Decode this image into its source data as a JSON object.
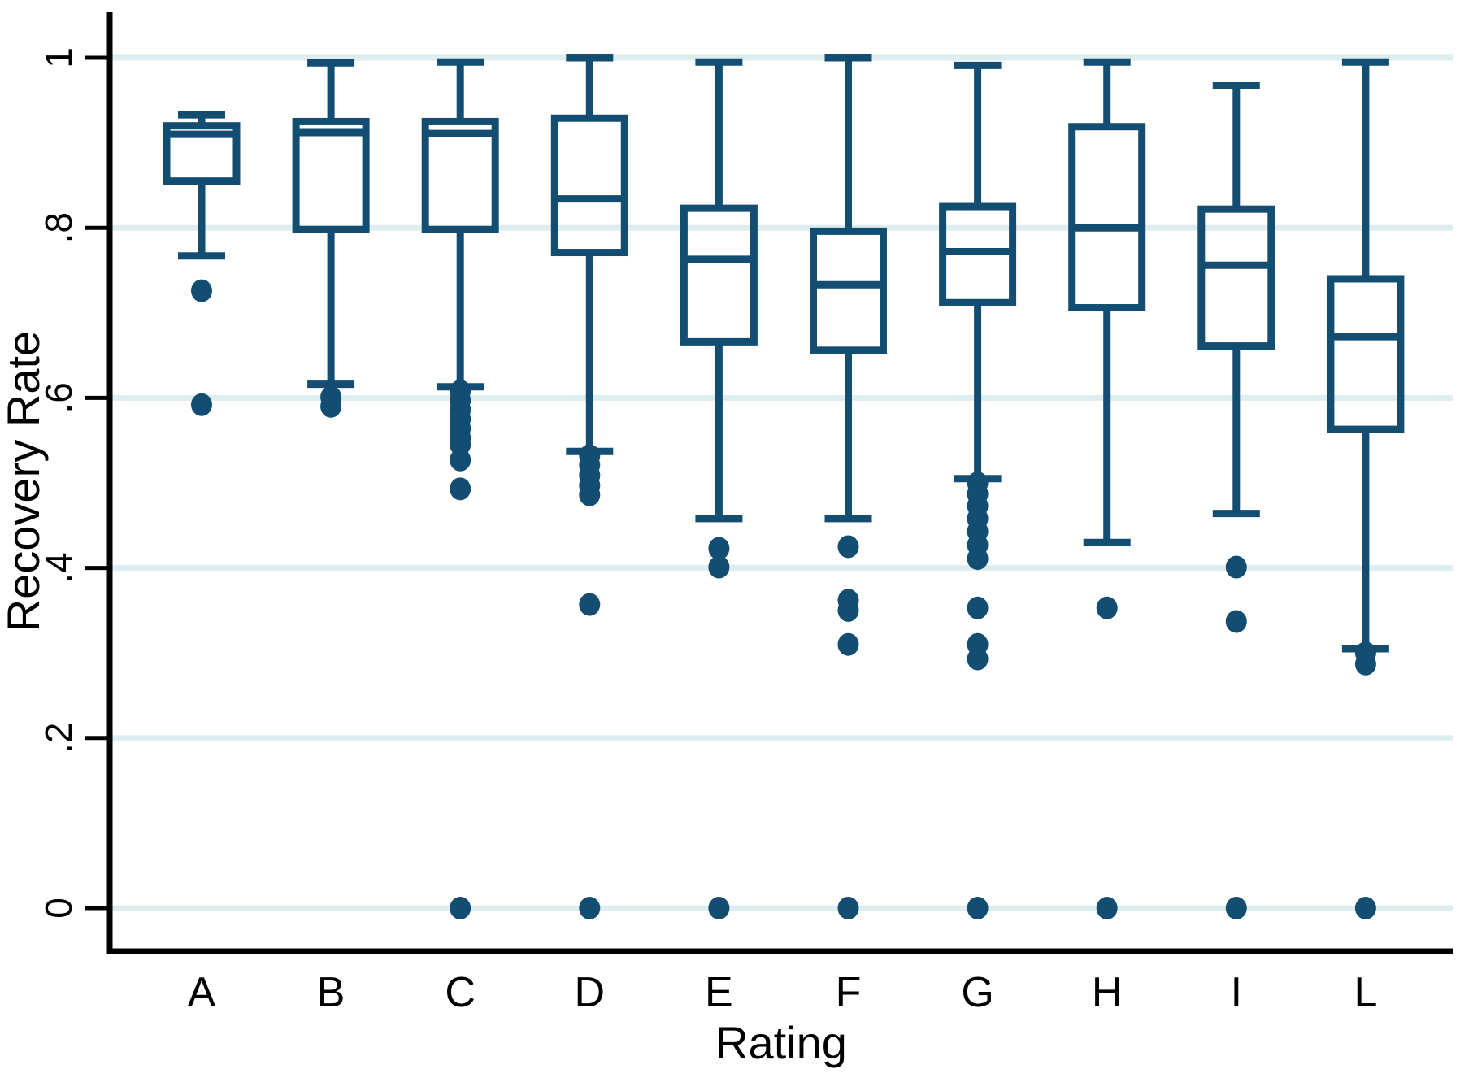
{
  "chart_data": {
    "type": "box",
    "title": "",
    "xlabel": "Rating",
    "ylabel": "Recovery Rate",
    "categories": [
      "A",
      "B",
      "C",
      "D",
      "E",
      "F",
      "G",
      "H",
      "I",
      "L"
    ],
    "y_ticks": [
      0,
      0.2,
      0.4,
      0.6,
      0.8,
      1
    ],
    "y_tick_labels": [
      "0",
      ".2",
      ".4",
      ".6",
      ".8",
      "1"
    ],
    "ylim": [
      -0.05,
      1.05
    ],
    "grid": true,
    "legend": "none",
    "boxes": [
      {
        "category": "A",
        "whisker_low": 0.767,
        "q1": 0.855,
        "median": 0.91,
        "q3": 0.92,
        "whisker_high": 0.933,
        "outliers": [
          0.726,
          0.592
        ]
      },
      {
        "category": "B",
        "whisker_low": 0.616,
        "q1": 0.798,
        "median": 0.912,
        "q3": 0.925,
        "whisker_high": 0.994,
        "outliers": [
          0.601,
          0.59
        ]
      },
      {
        "category": "C",
        "whisker_low": 0.613,
        "q1": 0.798,
        "median": 0.911,
        "q3": 0.925,
        "whisker_high": 0.995,
        "outliers": [
          0.608,
          0.597,
          0.586,
          0.575,
          0.564,
          0.553,
          0.545,
          0.527,
          0.493,
          0
        ]
      },
      {
        "category": "D",
        "whisker_low": 0.537,
        "q1": 0.771,
        "median": 0.834,
        "q3": 0.929,
        "whisker_high": 1.0,
        "outliers": [
          0.532,
          0.521,
          0.509,
          0.497,
          0.486,
          0.357,
          0
        ]
      },
      {
        "category": "E",
        "whisker_low": 0.458,
        "q1": 0.666,
        "median": 0.763,
        "q3": 0.823,
        "whisker_high": 0.995,
        "outliers": [
          0.423,
          0.401,
          0
        ]
      },
      {
        "category": "F",
        "whisker_low": 0.458,
        "q1": 0.656,
        "median": 0.733,
        "q3": 0.796,
        "whisker_high": 1.0,
        "outliers": [
          0.425,
          0.362,
          0.35,
          0.31,
          0
        ]
      },
      {
        "category": "G",
        "whisker_low": 0.505,
        "q1": 0.712,
        "median": 0.772,
        "q3": 0.825,
        "whisker_high": 0.991,
        "outliers": [
          0.5,
          0.487,
          0.473,
          0.458,
          0.443,
          0.427,
          0.411,
          0.353,
          0.31,
          0.293,
          0
        ]
      },
      {
        "category": "H",
        "whisker_low": 0.43,
        "q1": 0.706,
        "median": 0.8,
        "q3": 0.919,
        "whisker_high": 0.995,
        "outliers": [
          0.353,
          0
        ]
      },
      {
        "category": "I",
        "whisker_low": 0.464,
        "q1": 0.661,
        "median": 0.756,
        "q3": 0.822,
        "whisker_high": 0.967,
        "outliers": [
          0.401,
          0.337,
          0
        ]
      },
      {
        "category": "L",
        "whisker_low": 0.305,
        "q1": 0.563,
        "median": 0.672,
        "q3": 0.74,
        "whisker_high": 0.995,
        "outliers": [
          0.3,
          0.287,
          0
        ]
      }
    ],
    "colors": {
      "box_stroke": "#134e72",
      "box_fill": "none",
      "outlier_fill": "#134e72",
      "gridline": "#ddedf0",
      "axis": "#000000",
      "background": "#ffffff"
    }
  }
}
